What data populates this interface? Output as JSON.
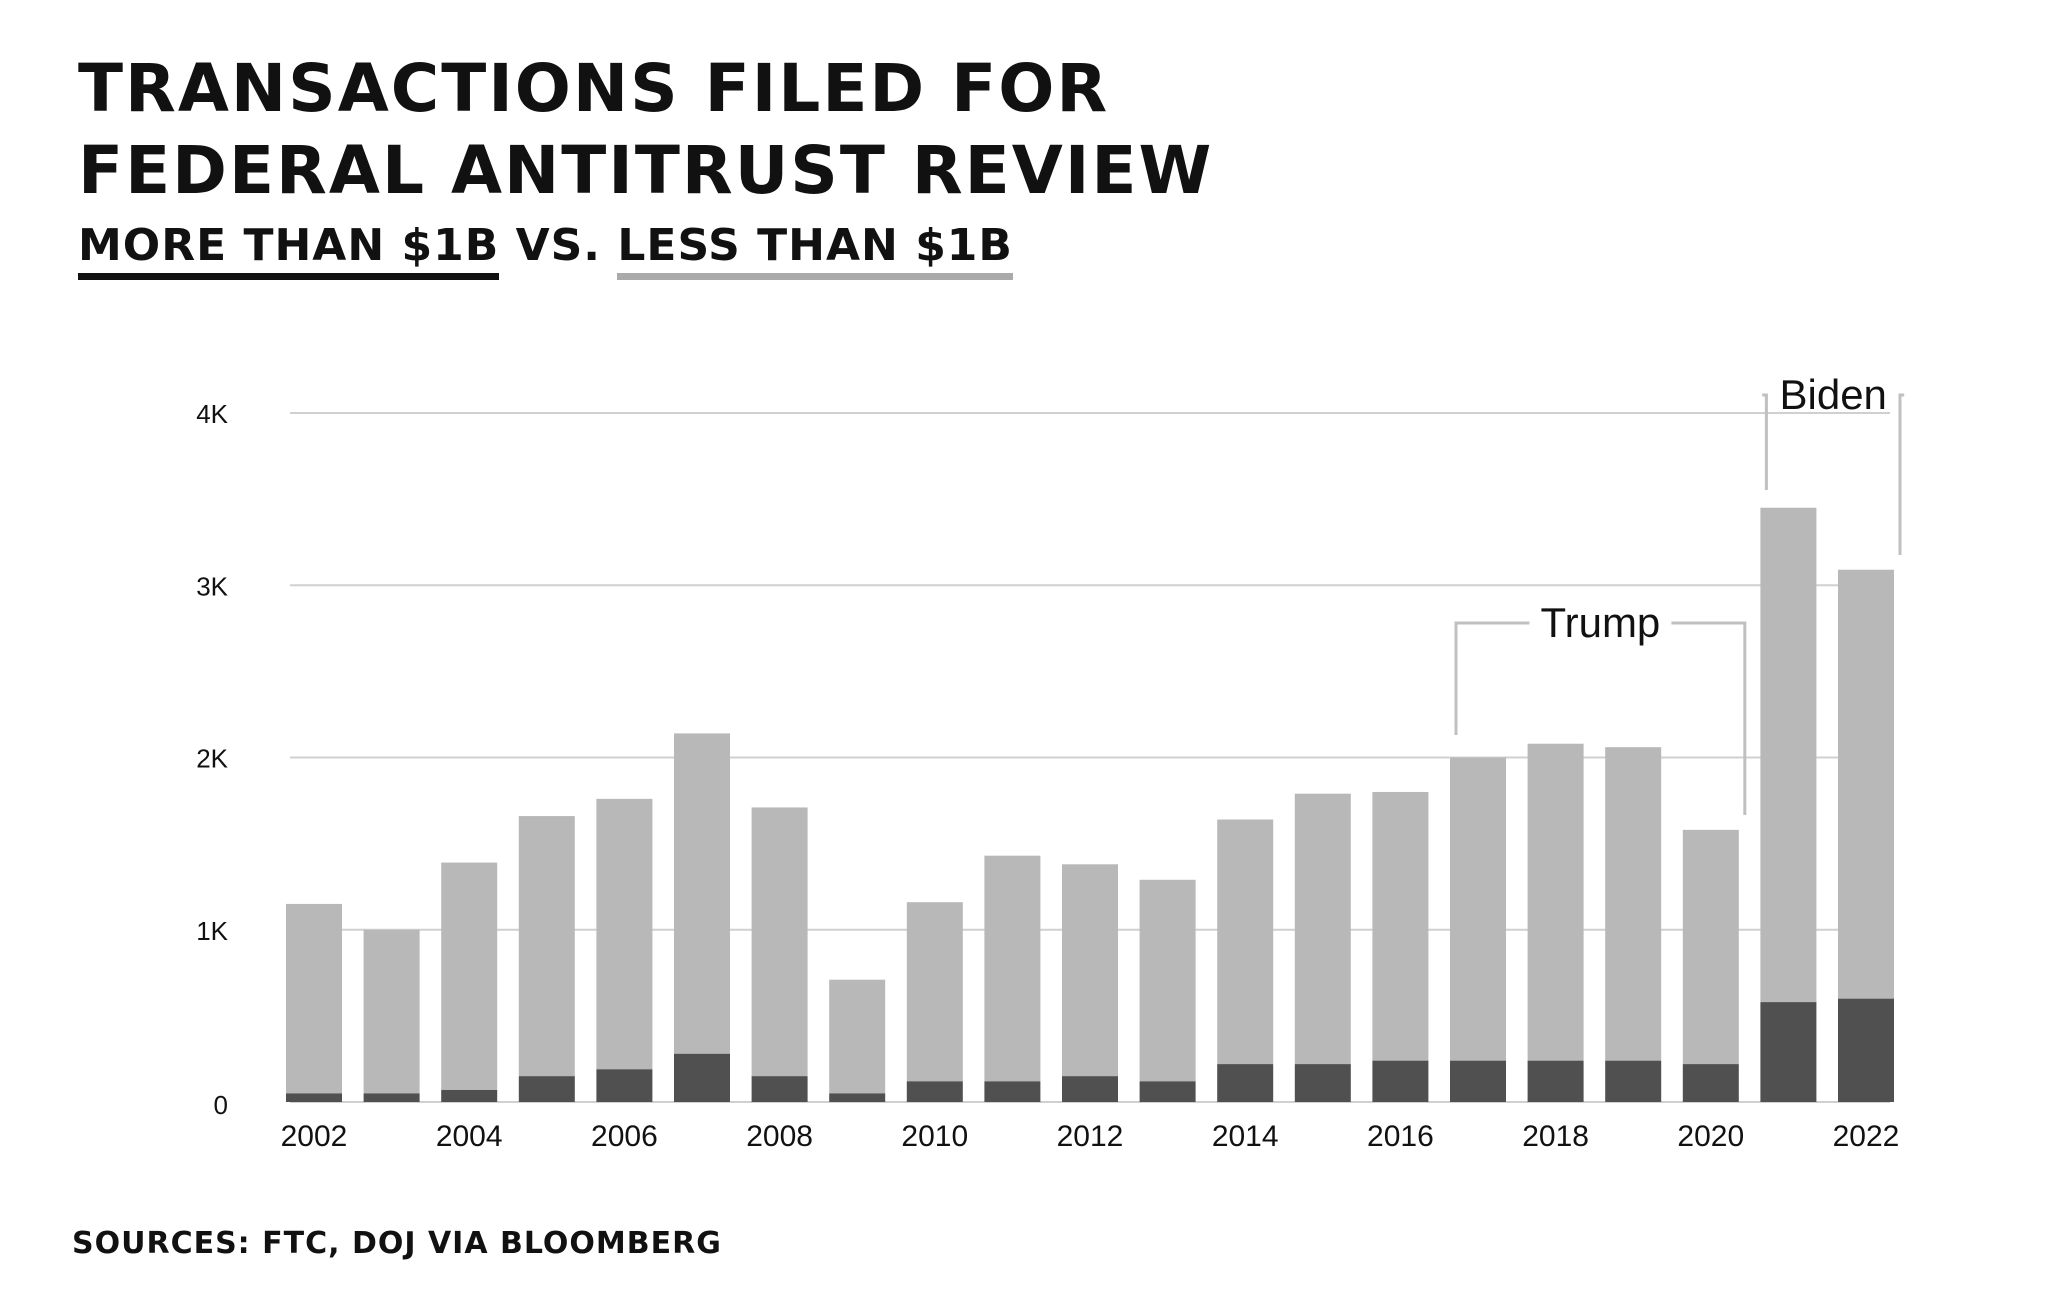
{
  "header": {
    "title": "Transactions filed for federal antitrust review",
    "subtitle_part1": "More than $1B",
    "subtitle_sep": " vs. ",
    "subtitle_part2": "Less than $1B"
  },
  "footer": {
    "source": "Sources: FTC, DOJ via Bloomberg"
  },
  "colors": {
    "over_1b": "#505050",
    "under_1b": "#b8b8b8",
    "grid": "#d0d0d0",
    "bracket": "#c0c0c0"
  },
  "chart_data": {
    "type": "bar",
    "stacked": true,
    "title": "Transactions filed for federal antitrust review",
    "subtitle": "More than $1B vs. Less than $1B",
    "xlabel": "",
    "ylabel": "",
    "ylim": [
      0,
      4000
    ],
    "yticks": [
      0,
      1000,
      2000,
      3000,
      4000
    ],
    "ytick_labels": [
      "0",
      "1K",
      "2K",
      "3K",
      "4K"
    ],
    "grid": true,
    "categories": [
      "2002",
      "2003",
      "2004",
      "2005",
      "2006",
      "2007",
      "2008",
      "2009",
      "2010",
      "2011",
      "2012",
      "2013",
      "2014",
      "2015",
      "2016",
      "2017",
      "2018",
      "2019",
      "2020",
      "2021",
      "2022"
    ],
    "xtick_labels": [
      "2002",
      "2004",
      "2006",
      "2008",
      "2010",
      "2012",
      "2014",
      "2016",
      "2018",
      "2020",
      "2022"
    ],
    "series": [
      {
        "name": "More than $1B",
        "values": [
          50,
          50,
          70,
          150,
          190,
          280,
          150,
          50,
          120,
          120,
          150,
          120,
          220,
          220,
          240,
          240,
          240,
          240,
          220,
          580,
          600
        ]
      },
      {
        "name": "Less than $1B",
        "values": [
          1100,
          950,
          1320,
          1510,
          1570,
          1860,
          1560,
          660,
          1040,
          1310,
          1230,
          1170,
          1420,
          1570,
          1560,
          1760,
          1840,
          1820,
          1360,
          2870,
          2490
        ]
      }
    ],
    "annotations": [
      {
        "label": "Trump",
        "from": "2017",
        "to": "2020"
      },
      {
        "label": "Biden",
        "from": "2021",
        "to": "2022"
      }
    ]
  }
}
